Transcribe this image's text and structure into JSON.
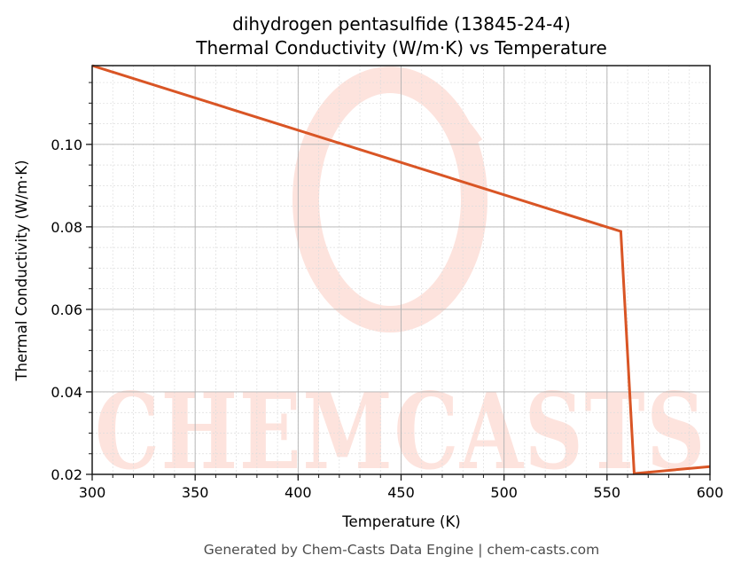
{
  "title": {
    "line1": "dihydrogen pentasulfide (13845-24-4)",
    "line2": "Thermal Conductivity (W/m·K) vs Temperature"
  },
  "axes": {
    "xlabel": "Temperature (K)",
    "ylabel": "Thermal Conductivity (W/m·K)"
  },
  "footer": "Generated by Chem-Casts Data Engine | chem-casts.com",
  "watermark": {
    "text": "CHEMCASTS",
    "color": "#fde3dd"
  },
  "colors": {
    "line": "#d95525",
    "axis": "#1a1a1a",
    "grid_major": "#b0b0b0",
    "grid_minor": "#dddddd"
  },
  "chart_data": {
    "type": "line",
    "title": "dihydrogen pentasulfide (13845-24-4) Thermal Conductivity (W/m·K) vs Temperature",
    "xlabel": "Temperature (K)",
    "ylabel": "Thermal Conductivity (W/m·K)",
    "xlim": [
      300,
      600
    ],
    "ylim": [
      0.02,
      0.1191
    ],
    "x_ticks": [
      300,
      350,
      400,
      450,
      500,
      550,
      600
    ],
    "x_tick_labels": [
      "300",
      "350",
      "400",
      "450",
      "500",
      "550",
      "600"
    ],
    "y_ticks": [
      0.02,
      0.04,
      0.06,
      0.08,
      0.1
    ],
    "y_tick_labels": [
      "0.02",
      "0.04",
      "0.06",
      "0.08",
      "0.10"
    ],
    "x_minor_step": 10,
    "y_minor_step": 0.005,
    "grid": true,
    "legend": null,
    "series": [
      {
        "name": "Thermal Conductivity",
        "x": [
          300,
          556.7,
          563.2,
          600
        ],
        "y": [
          0.1191,
          0.0789,
          0.0202,
          0.0219
        ]
      }
    ]
  }
}
